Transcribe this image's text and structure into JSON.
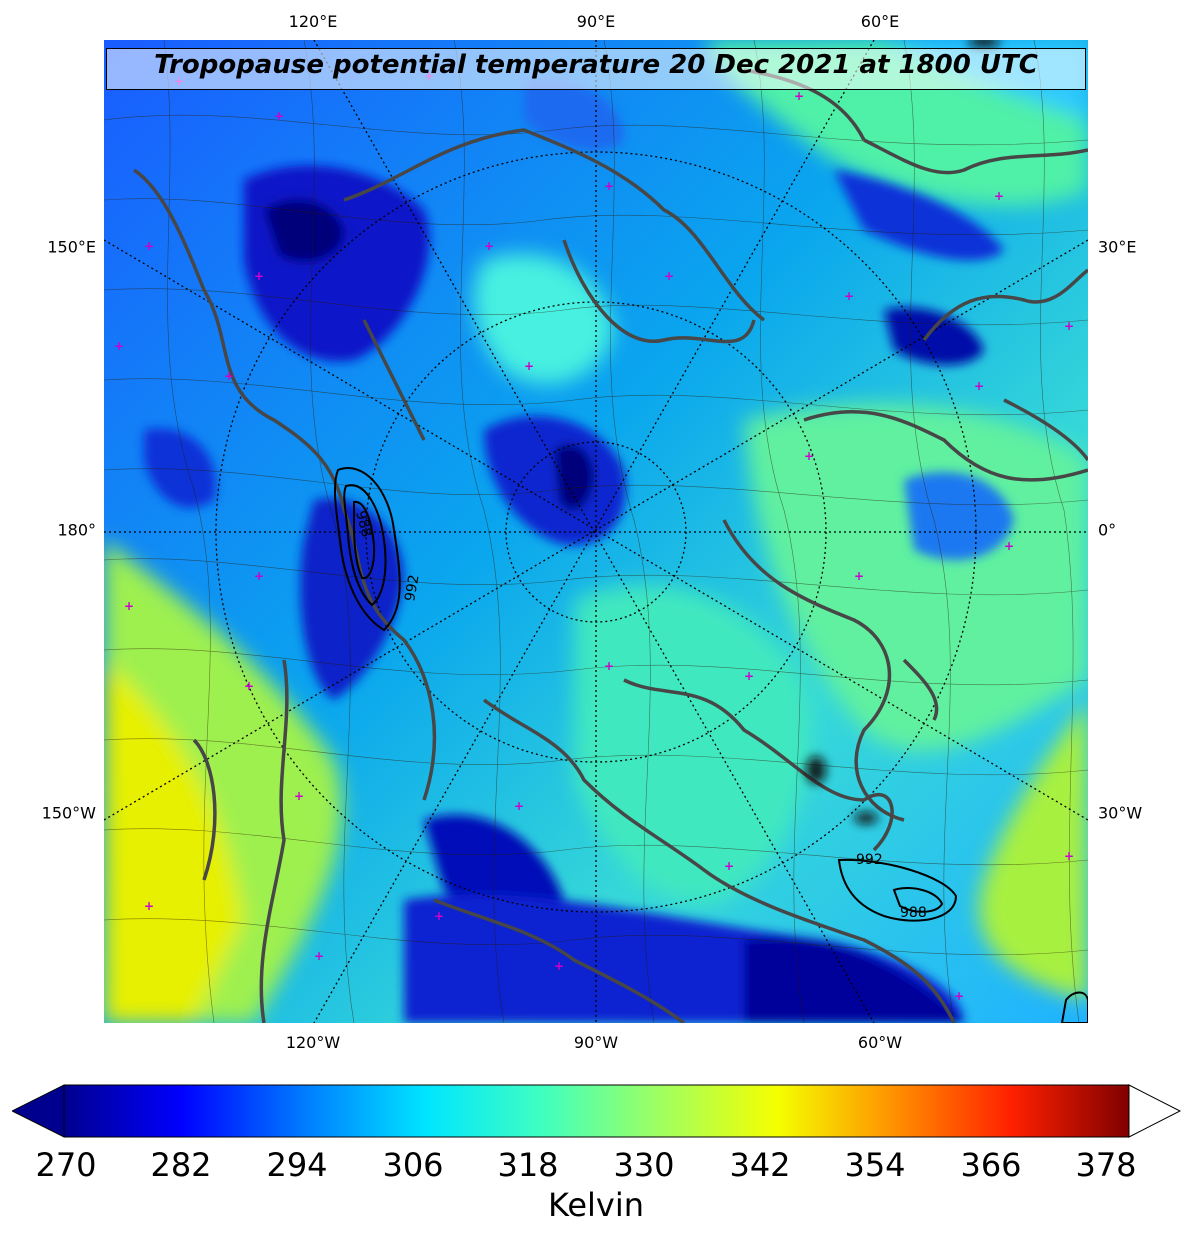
{
  "title": "Tropopause potential temperature 20 Dec 2021 at 1800 UTC",
  "lon_labels": {
    "top": [
      "120°E",
      "90°E",
      "60°E"
    ],
    "bottom": [
      "120°W",
      "90°W",
      "60°W"
    ],
    "left": [
      "150°E",
      "180°",
      "150°W"
    ],
    "right": [
      "30°E",
      "0°",
      "30°W"
    ]
  },
  "pressure_contours": [
    "988",
    "992",
    "992",
    "988"
  ],
  "colorbar": {
    "label": "Kelvin",
    "ticks": [
      "270",
      "282",
      "294",
      "306",
      "318",
      "330",
      "342",
      "354",
      "366",
      "378"
    ],
    "min": 270,
    "max": 378,
    "extend": "both",
    "colormap": "jet"
  },
  "colors": {
    "coastline": "#474747",
    "marker": "#cc00cc",
    "cold": "#00008f",
    "warm": "#800000"
  }
}
